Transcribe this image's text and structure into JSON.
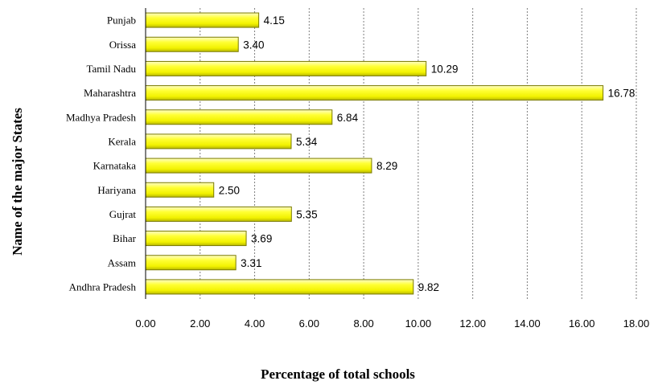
{
  "chart_data": {
    "type": "bar",
    "orientation": "horizontal",
    "categories": [
      "Andhra Pradesh",
      "Assam",
      "Bihar",
      "Gujrat",
      "Hariyana",
      "Karnataka",
      "Kerala",
      "Madhya Pradesh",
      "Maharashtra",
      "Tamil Nadu",
      "Orissa",
      "Punjab"
    ],
    "values": [
      9.82,
      3.31,
      3.69,
      5.35,
      2.5,
      8.29,
      5.34,
      6.84,
      16.78,
      10.29,
      3.4,
      4.15
    ],
    "data_labels": [
      "9.82",
      "3.31",
      "3.69",
      "5.35",
      "2.50",
      "8.29",
      "5.34",
      "6.84",
      "16.78",
      "10.29",
      "3.40",
      "4.15"
    ],
    "xlabel": "Percentage of total schools",
    "ylabel": "Name of the major States",
    "xlim": [
      0,
      18
    ],
    "xticks": [
      "0.00",
      "2.00",
      "4.00",
      "6.00",
      "8.00",
      "10.00",
      "12.00",
      "14.00",
      "16.00",
      "18.00"
    ],
    "grid": "vertical dotted",
    "bar_color": "#ffff00",
    "bar_edge_color": "#7a7a00"
  }
}
